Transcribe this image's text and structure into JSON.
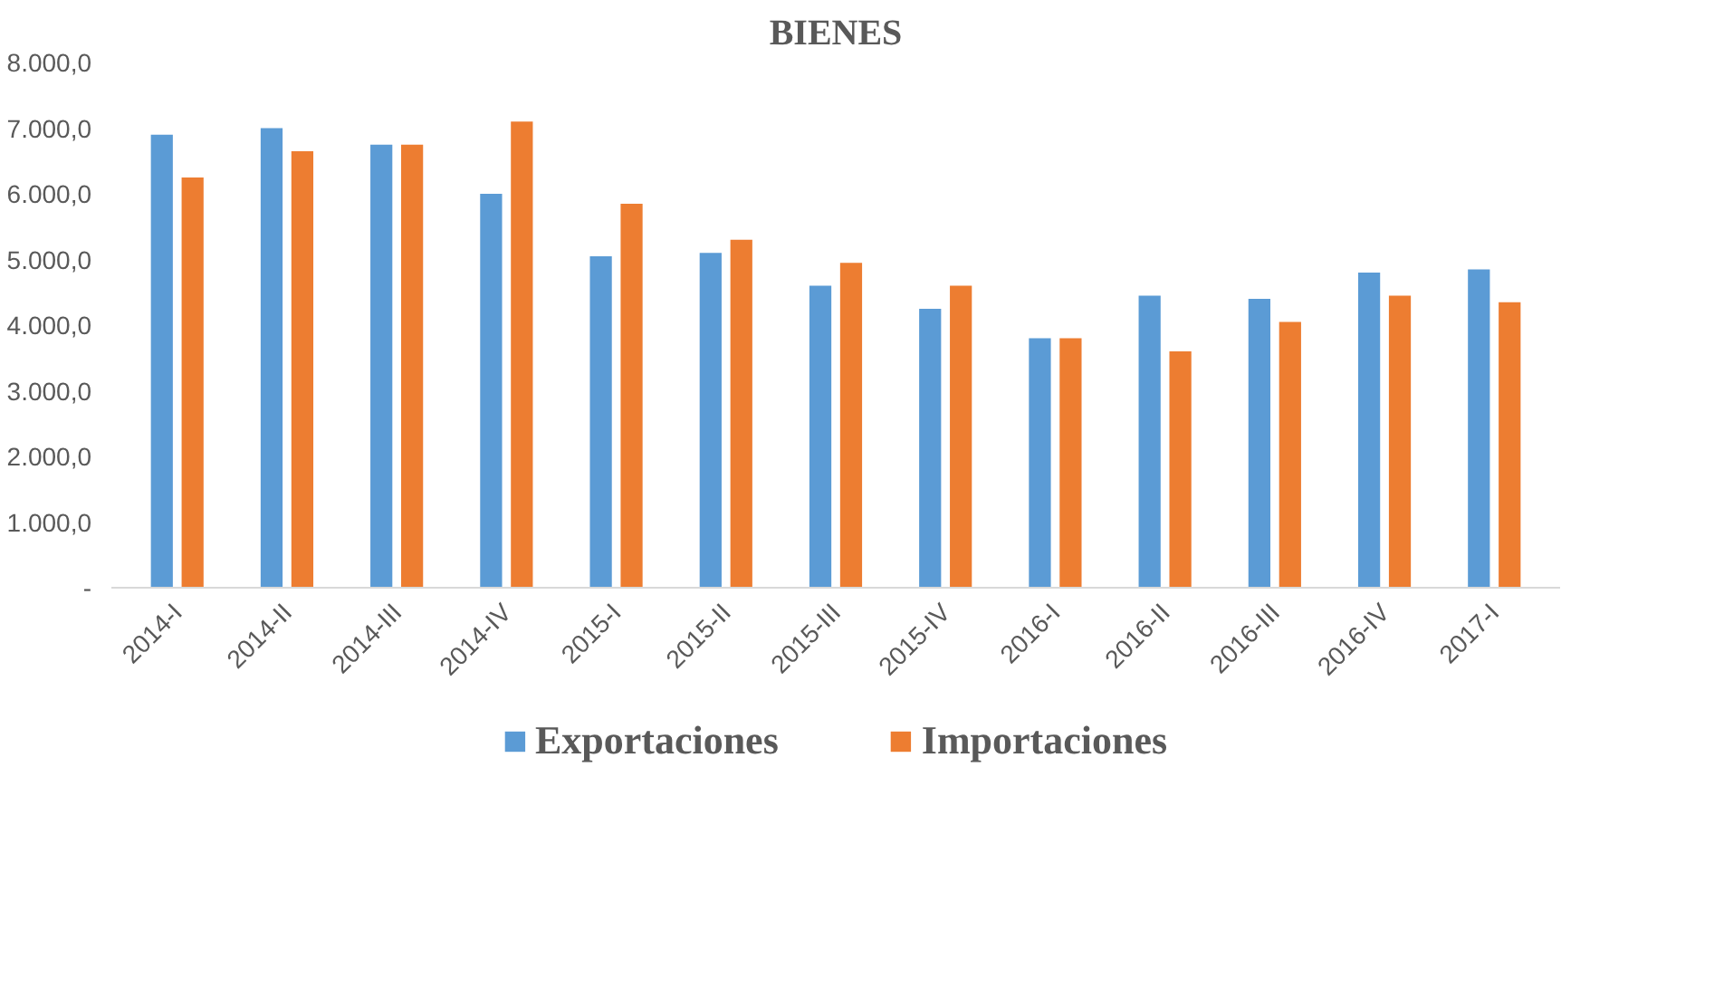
{
  "chart_data": {
    "type": "bar",
    "title": "BIENES",
    "categories": [
      "2014-I",
      "2014-II",
      "2014-III",
      "2014-IV",
      "2015-I",
      "2015-II",
      "2015-III",
      "2015-IV",
      "2016-I",
      "2016-II",
      "2016-III",
      "2016-IV",
      "2017-I"
    ],
    "series": [
      {
        "name": "Exportaciones",
        "color": "#5b9bd5",
        "values": [
          6900,
          7000,
          6750,
          6000,
          5050,
          5100,
          4600,
          4250,
          3800,
          4450,
          4400,
          4800,
          4850
        ]
      },
      {
        "name": "Importaciones",
        "color": "#ed7d31",
        "values": [
          6250,
          6650,
          6750,
          7100,
          5850,
          5300,
          4950,
          4600,
          3800,
          3600,
          4050,
          4450,
          4350
        ]
      }
    ],
    "ylim": [
      0,
      8000
    ],
    "yticks": [
      {
        "value": 0,
        "label": "-"
      },
      {
        "value": 1000,
        "label": "1.000,0"
      },
      {
        "value": 2000,
        "label": "2.000,0"
      },
      {
        "value": 3000,
        "label": "3.000,0"
      },
      {
        "value": 4000,
        "label": "4.000,0"
      },
      {
        "value": 5000,
        "label": "5.000,0"
      },
      {
        "value": 6000,
        "label": "6.000,0"
      },
      {
        "value": 7000,
        "label": "7.000,0"
      },
      {
        "value": 8000,
        "label": "8.000,0"
      }
    ],
    "legend": "bottom"
  }
}
